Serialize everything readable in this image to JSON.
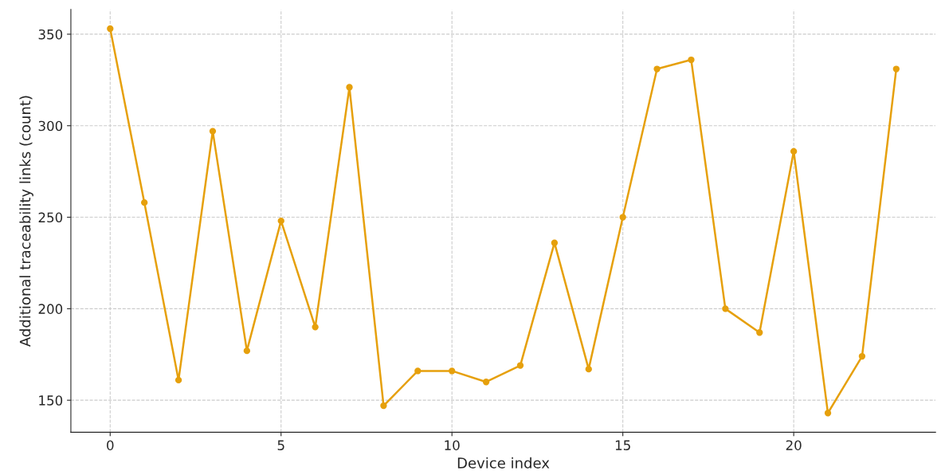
{
  "chart_data": {
    "type": "line",
    "xlabel": "Device index",
    "ylabel": "Additional traceability links (count)",
    "x": [
      0,
      1,
      2,
      3,
      4,
      5,
      6,
      7,
      8,
      9,
      10,
      11,
      12,
      13,
      14,
      15,
      16,
      17,
      18,
      19,
      20,
      21,
      22,
      23
    ],
    "series": [
      {
        "color": "#e6a00c",
        "values": [
          353,
          258,
          161,
          297,
          177,
          248,
          190,
          321,
          147,
          166,
          166,
          160,
          169,
          236,
          167,
          250,
          331,
          336,
          200,
          187,
          286,
          143,
          174,
          331
        ]
      }
    ],
    "xlim": [
      -1.15,
      24.15
    ],
    "xticks": [
      0,
      5,
      10,
      15,
      20
    ],
    "ylim": [
      132.5,
      363.5
    ],
    "yticks": [
      150,
      200,
      250,
      300,
      350
    ],
    "grid": true,
    "marker": "circle",
    "line_style": "solid"
  }
}
